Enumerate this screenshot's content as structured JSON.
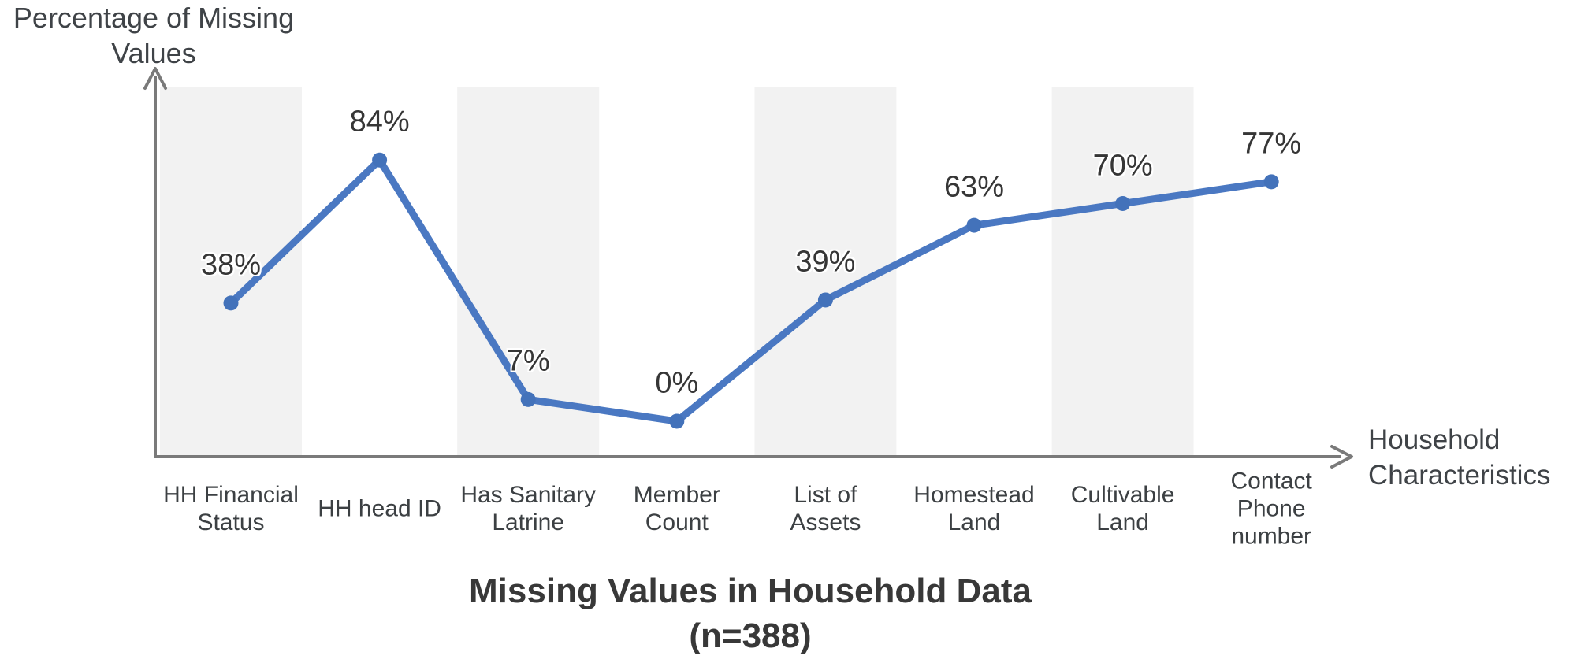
{
  "chart_data": {
    "type": "line",
    "title": "Missing Values in Household Data",
    "subtitle": "(n=388)",
    "ylabel": "Percentage of Missing Values",
    "ylabel_lines": [
      "Percentage of Missing",
      "Values"
    ],
    "xlabel": "Household Characteristics",
    "xlabel_lines": [
      "Household",
      "Characteristics"
    ],
    "categories": [
      "HH Financial Status",
      "HH head ID",
      "Has Sanitary Latrine",
      "Member Count",
      "List of Assets",
      "Homestead Land",
      "Cultivable Land",
      "Contact Phone number"
    ],
    "category_lines": [
      [
        "HH Financial",
        "Status"
      ],
      [
        "HH head ID"
      ],
      [
        "Has Sanitary",
        "Latrine"
      ],
      [
        "Member",
        "Count"
      ],
      [
        "List of",
        "Assets"
      ],
      [
        "Homestead",
        "Land"
      ],
      [
        "Cultivable",
        "Land"
      ],
      [
        "Contact",
        "Phone",
        "number"
      ]
    ],
    "values": [
      38,
      84,
      7,
      0,
      39,
      63,
      70,
      77
    ],
    "value_labels": [
      "38%",
      "84%",
      "7%",
      "0%",
      "39%",
      "63%",
      "70%",
      "77%"
    ],
    "ylim": [
      0,
      100
    ],
    "y_axis_ticks_visible": false,
    "grid": false,
    "legend": "none",
    "alternating_bands": true,
    "band_columns": [
      0,
      2,
      4,
      6
    ]
  },
  "colors": {
    "line": "#4a78c2",
    "marker": "#4372ba",
    "band": "#f2f2f2",
    "axis": "#7a7a7a",
    "value_label_text": "#363636",
    "category_text": "#3c4043",
    "axis_title_text": "#3f4347",
    "title_text": "#383838"
  }
}
